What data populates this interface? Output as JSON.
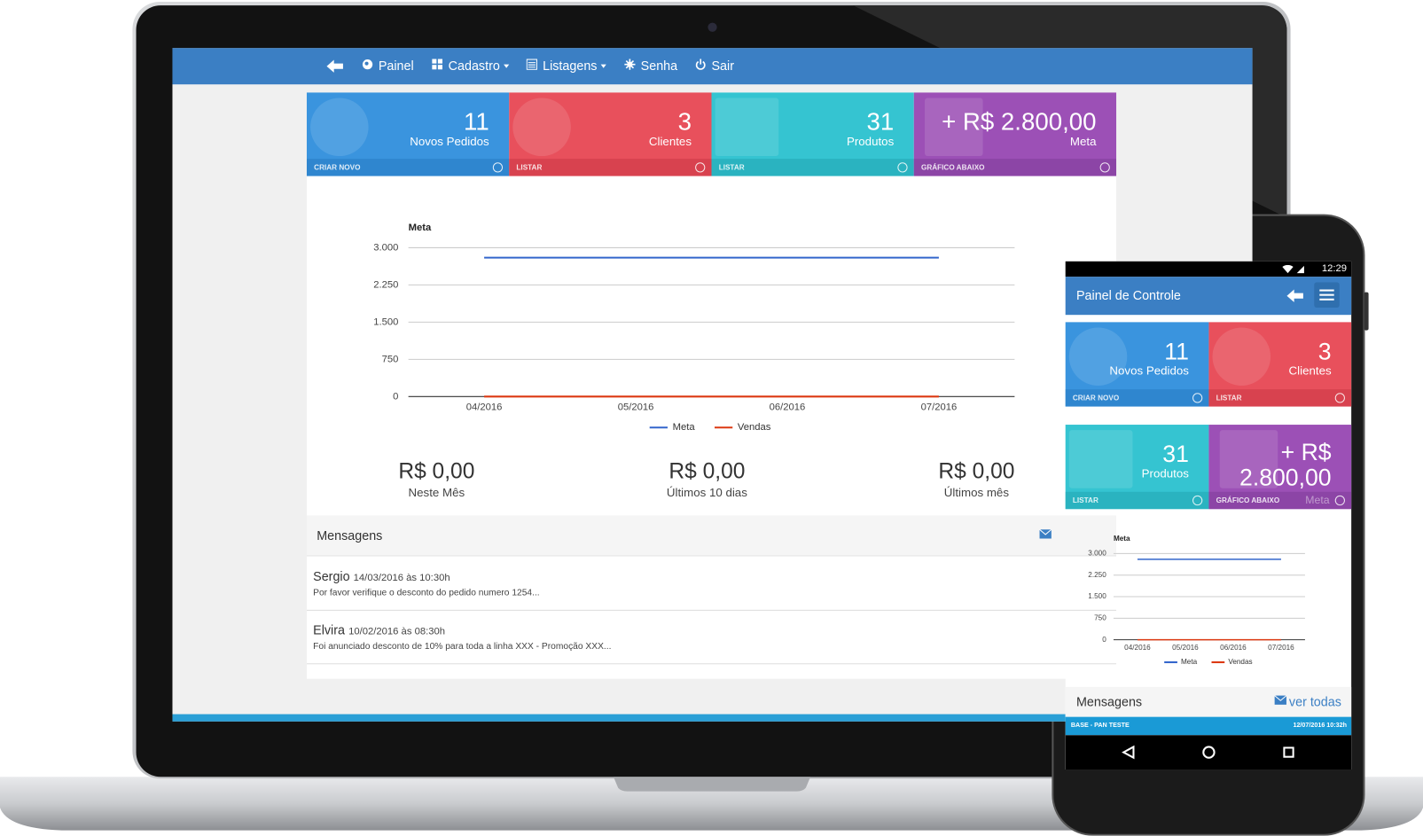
{
  "desktop": {
    "nav": [
      "Painel",
      "Cadastro",
      "Listagens",
      "Senha",
      "Sair"
    ],
    "cards": [
      {
        "value": 11,
        "label": "Novos Pedidos",
        "action": "CRIAR NOVO"
      },
      {
        "value": 3,
        "label": "Clientes",
        "action": "LISTAR"
      },
      {
        "value": 31,
        "label": "Produtos",
        "action": "LISTAR"
      },
      {
        "value": "+ R$ 2.800,00",
        "label": "Meta",
        "action": "GRÁFICO ABAIXO"
      }
    ],
    "summary": [
      {
        "value": "R$ 0,00",
        "label": "Neste Mês"
      },
      {
        "value": "R$ 0,00",
        "label": "Últimos 10 dias"
      },
      {
        "value": "R$ 0,00",
        "label": "Últimos mês"
      }
    ],
    "messages": {
      "title": "Mensagens",
      "items": [
        {
          "author": "Sergio",
          "date": "14/03/2016 às 10:30h",
          "text": "Por favor verifique o desconto do pedido numero 1254..."
        },
        {
          "author": "Elvira",
          "date": "10/02/2016 às 08:30h",
          "text": "Foi anunciado desconto de 10% para toda a linha XXX - Promoção XXX..."
        }
      ]
    }
  },
  "mobile": {
    "time": "12:29",
    "title": "Painel de Controle",
    "cards": [
      {
        "value": 11,
        "label": "Novos Pedidos",
        "action": "CRIAR NOVO"
      },
      {
        "value": 3,
        "label": "Clientes",
        "action": "LISTAR"
      },
      {
        "value": 31,
        "label": "Produtos",
        "action": "LISTAR"
      },
      {
        "value": "+ R$ 2.800,00",
        "label": "Meta",
        "action": "GRÁFICO ABAIXO"
      }
    ],
    "messages": {
      "title": "Mensagens",
      "link": "ver todas",
      "items": [
        {
          "author": "BASE - PAN TESTE",
          "date": "12/07/2016 10:32h"
        }
      ]
    }
  },
  "chart_data": [
    {
      "type": "line",
      "title": "Meta",
      "categories": [
        "04/2016",
        "05/2016",
        "06/2016",
        "07/2016"
      ],
      "series": [
        {
          "name": "Meta",
          "color": "#3366cc",
          "values": [
            2800,
            2800,
            2800,
            2800
          ]
        },
        {
          "name": "Vendas",
          "color": "#dc3912",
          "values": [
            0,
            0,
            0,
            0
          ]
        }
      ],
      "ylim": [
        0,
        3000
      ],
      "yticks": [
        0,
        750,
        {
          "value": 1500,
          "label": "1.500"
        },
        {
          "value": 2250,
          "label": "2.250"
        },
        {
          "value": 3000,
          "label": "3.000"
        }
      ],
      "grid": true
    },
    {
      "type": "line",
      "title": "Meta",
      "categories": [
        "04/2016",
        "05/2016",
        "06/2016",
        "07/2016"
      ],
      "series": [
        {
          "name": "Meta",
          "color": "#3366cc",
          "values": [
            2800,
            2800,
            2800,
            2800
          ]
        },
        {
          "name": "Vendas",
          "color": "#dc3912",
          "values": [
            0,
            0,
            0,
            0
          ]
        }
      ],
      "ylim": [
        0,
        3000
      ],
      "yticks": [
        0,
        750,
        {
          "value": 1500,
          "label": "1.500"
        },
        {
          "value": 2250,
          "label": "2.250"
        },
        {
          "value": 3000,
          "label": "3.000"
        }
      ],
      "grid": true
    }
  ]
}
